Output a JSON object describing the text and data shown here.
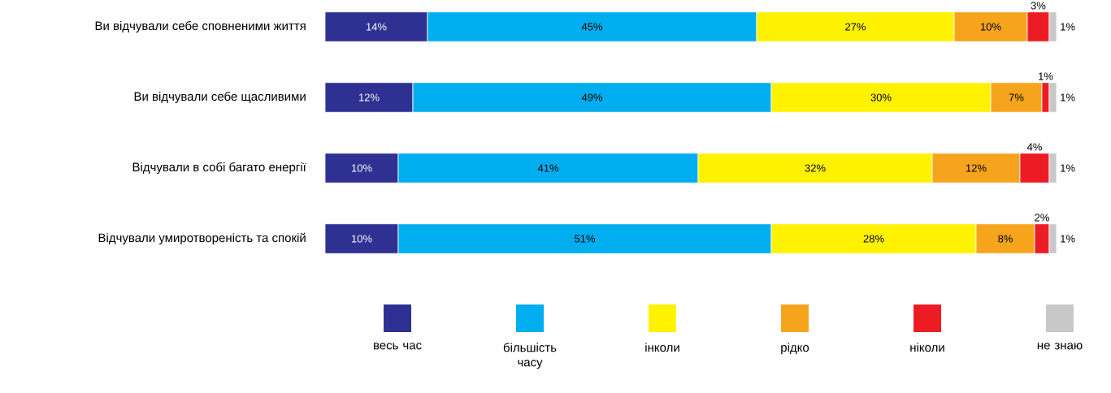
{
  "chart_data": {
    "type": "bar",
    "orientation": "horizontal",
    "stacked": true,
    "legend": "bottom",
    "categories": [
      "Ви відчували себе сповненими життя",
      "Ви відчували себе щасливими",
      "Відчували в собі багато енергії",
      "Відчували умиротвореність та спокій"
    ],
    "series": [
      {
        "name": "весь час",
        "color": "#2e3192",
        "values": [
          14,
          12,
          10,
          10
        ],
        "value_labels": [
          "14%",
          "12%",
          "10%",
          "10%"
        ]
      },
      {
        "name": "більшість часу",
        "color": "#00aeef",
        "values": [
          45,
          49,
          41,
          51
        ],
        "value_labels": [
          "45%",
          "49%",
          "41%",
          "51%"
        ]
      },
      {
        "name": "інколи",
        "color": "#fff200",
        "values": [
          27,
          30,
          32,
          28
        ],
        "value_labels": [
          "27%",
          "30%",
          "32%",
          "28%"
        ]
      },
      {
        "name": "рідко",
        "color": "#f7a41d",
        "values": [
          10,
          7,
          12,
          8
        ],
        "value_labels": [
          "10%",
          "7%",
          "12%",
          "8%"
        ]
      },
      {
        "name": "ніколи",
        "color": "#ed1c24",
        "values": [
          3,
          1,
          4,
          2
        ],
        "value_labels": [
          "3%",
          "1%",
          "4%",
          "2%"
        ]
      },
      {
        "name": "не знаю",
        "color": "#c8c8c8",
        "values": [
          1,
          1,
          1,
          1
        ],
        "value_labels": [
          "1%",
          "1%",
          "1%",
          "1%"
        ]
      }
    ]
  }
}
